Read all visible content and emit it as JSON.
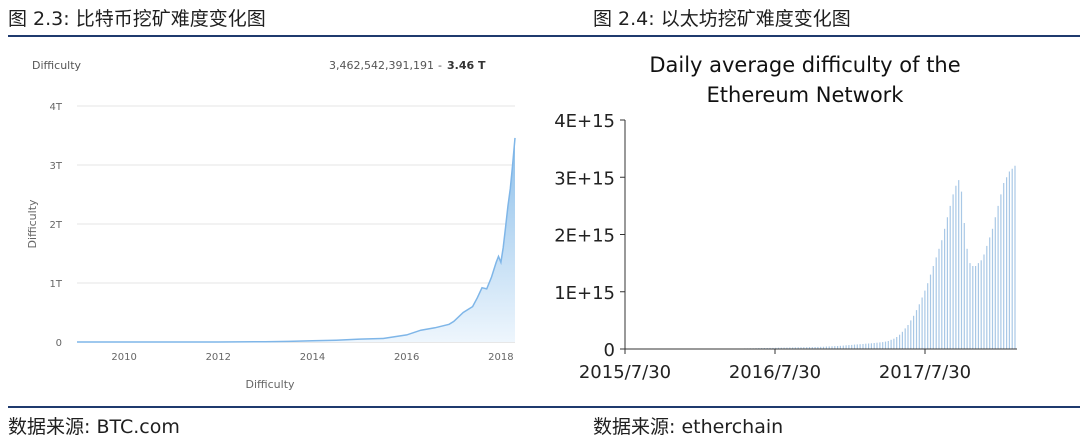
{
  "figures": {
    "left_title": "图 2.3: 比特币挖矿难度变化图",
    "right_title": "图 2.4: 以太坊挖矿难度变化图",
    "left_source": "数据来源: BTC.com",
    "right_source": "数据来源: etherchain"
  },
  "colors": {
    "rule": "#1f3a6e",
    "btc_line": "#7fb6e8",
    "btc_fill_top": "#8cbfea",
    "btc_fill_bottom": "#eef6fd",
    "eth_bar": "#a9c8e6",
    "axis": "#333333"
  },
  "chart_data": [
    {
      "type": "area",
      "header_label": "Difficulty",
      "current_value": "3,462,542,391,191",
      "current_value_short": "3.46 T",
      "xlabel": "Difficulty",
      "ylabel": "Difficulty",
      "y_ticks": [
        "0",
        "1T",
        "2T",
        "3T",
        "4T"
      ],
      "x_ticks": [
        "2010",
        "2012",
        "2014",
        "2016",
        "2018"
      ],
      "xlim": [
        2009.0,
        2018.3
      ],
      "ylim": [
        0,
        4
      ],
      "y_unit": "T",
      "grid": true,
      "series": [
        {
          "x": [
            2009.0,
            2010.0,
            2011.0,
            2012.0,
            2013.0,
            2013.5,
            2014.0,
            2014.5,
            2015.0,
            2015.5,
            2016.0,
            2016.3,
            2016.6,
            2016.9,
            2017.0,
            2017.2,
            2017.4,
            2017.5,
            2017.6,
            2017.7,
            2017.8,
            2017.9,
            2017.95,
            2018.0,
            2018.05,
            2018.1,
            2018.15,
            2018.2,
            2018.25,
            2018.3
          ],
          "y": [
            0.0,
            0.0,
            0.0,
            0.0,
            0.005,
            0.01,
            0.02,
            0.03,
            0.05,
            0.06,
            0.12,
            0.2,
            0.24,
            0.3,
            0.35,
            0.5,
            0.6,
            0.75,
            0.92,
            0.9,
            1.1,
            1.35,
            1.45,
            1.35,
            1.6,
            1.95,
            2.3,
            2.6,
            3.0,
            3.46
          ]
        }
      ]
    },
    {
      "type": "bar",
      "title": "Daily average difficulty of the Ethereum Network",
      "title_line1": "Daily average difficulty of the",
      "title_line2": "Ethereum Network",
      "x_ticks": [
        "2015/7/30",
        "2016/7/30",
        "2017/7/30"
      ],
      "y_ticks": [
        "0",
        "1E+15",
        "2E+15",
        "3E+15",
        "4E+15"
      ],
      "ylim": [
        0,
        4000000000000000.0
      ],
      "grid": false,
      "series": [
        {
          "values": [
            0.003,
            0.004,
            0.005,
            0.006,
            0.007,
            0.008,
            0.009,
            0.01,
            0.011,
            0.012,
            0.013,
            0.014,
            0.015,
            0.016,
            0.017,
            0.018,
            0.019,
            0.02,
            0.021,
            0.022,
            0.023,
            0.024,
            0.025,
            0.026,
            0.027,
            0.028,
            0.029,
            0.03,
            0.031,
            0.032,
            0.033,
            0.034,
            0.035,
            0.037,
            0.039,
            0.041,
            0.043,
            0.045,
            0.047,
            0.05,
            0.053,
            0.056,
            0.06,
            0.064,
            0.068,
            0.072,
            0.076,
            0.08,
            0.084,
            0.088,
            0.092,
            0.096,
            0.1,
            0.105,
            0.11,
            0.115,
            0.12,
            0.13,
            0.14,
            0.16,
            0.18,
            0.21,
            0.25,
            0.3,
            0.36,
            0.42,
            0.5,
            0.58,
            0.68,
            0.78,
            0.9,
            1.02,
            1.15,
            1.3,
            1.45,
            1.6,
            1.75,
            1.9,
            2.1,
            2.3,
            2.5,
            2.7,
            2.85,
            2.95,
            2.75,
            2.2,
            1.75,
            1.5,
            1.45,
            1.45,
            1.5,
            1.55,
            1.65,
            1.8,
            1.95,
            2.1,
            2.3,
            2.5,
            2.7,
            2.9,
            3.0,
            3.1,
            3.15,
            3.2
          ]
        }
      ]
    }
  ]
}
